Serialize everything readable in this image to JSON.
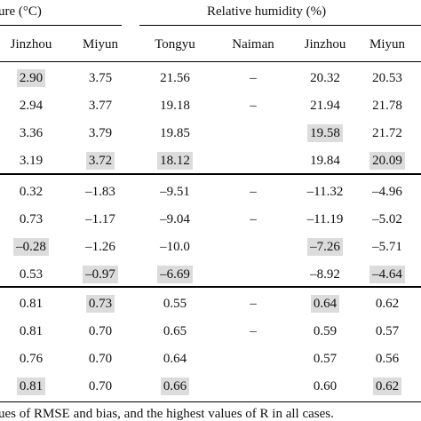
{
  "header": {
    "temperature_fragment": "ure (°C)",
    "humidity_label": "Relative humidity (%)"
  },
  "columns": [
    "Jinzhou",
    "Miyun",
    "Tongyu",
    "Naiman",
    "Jinzhou",
    "Miyun"
  ],
  "rows": [
    [
      "2.90",
      "3.75",
      "21.56",
      "–",
      "20.32",
      "20.53"
    ],
    [
      "2.94",
      "3.77",
      "19.18",
      "–",
      "21.94",
      "21.78"
    ],
    [
      "3.36",
      "3.79",
      "19.85",
      "",
      "19.58",
      "21.72"
    ],
    [
      "3.19",
      "3.72",
      "18.12",
      "",
      "19.84",
      "20.09"
    ],
    [
      "0.32",
      "–1.83",
      "–9.51",
      "–",
      "–11.32",
      "–4.96"
    ],
    [
      "0.73",
      "–1.17",
      "–9.04",
      "–",
      "–11.19",
      "–5.02"
    ],
    [
      "–0.28",
      "–1.26",
      "–10.0",
      "",
      "–7.26",
      "–5.71"
    ],
    [
      "0.53",
      "–0.97",
      "–6.69",
      "",
      "–8.92",
      "–4.64"
    ],
    [
      "0.81",
      "0.73",
      "0.55",
      "–",
      "0.64",
      "0.62"
    ],
    [
      "0.81",
      "0.70",
      "0.65",
      "–",
      "0.59",
      "0.57"
    ],
    [
      "0.76",
      "0.70",
      "0.64",
      "",
      "0.57",
      "0.56"
    ],
    [
      "0.81",
      "0.70",
      "0.66",
      "",
      "0.60",
      "0.62"
    ]
  ],
  "highlighted": [
    [
      0,
      0
    ],
    [
      2,
      4
    ],
    [
      3,
      1
    ],
    [
      3,
      2
    ],
    [
      3,
      5
    ],
    [
      6,
      0
    ],
    [
      6,
      4
    ],
    [
      7,
      1
    ],
    [
      7,
      2
    ],
    [
      7,
      5
    ],
    [
      8,
      1
    ],
    [
      8,
      4
    ],
    [
      11,
      0
    ],
    [
      11,
      2
    ],
    [
      11,
      5
    ]
  ],
  "footer": "ues of RMSE and bias, and the highest values of R in all cases."
}
